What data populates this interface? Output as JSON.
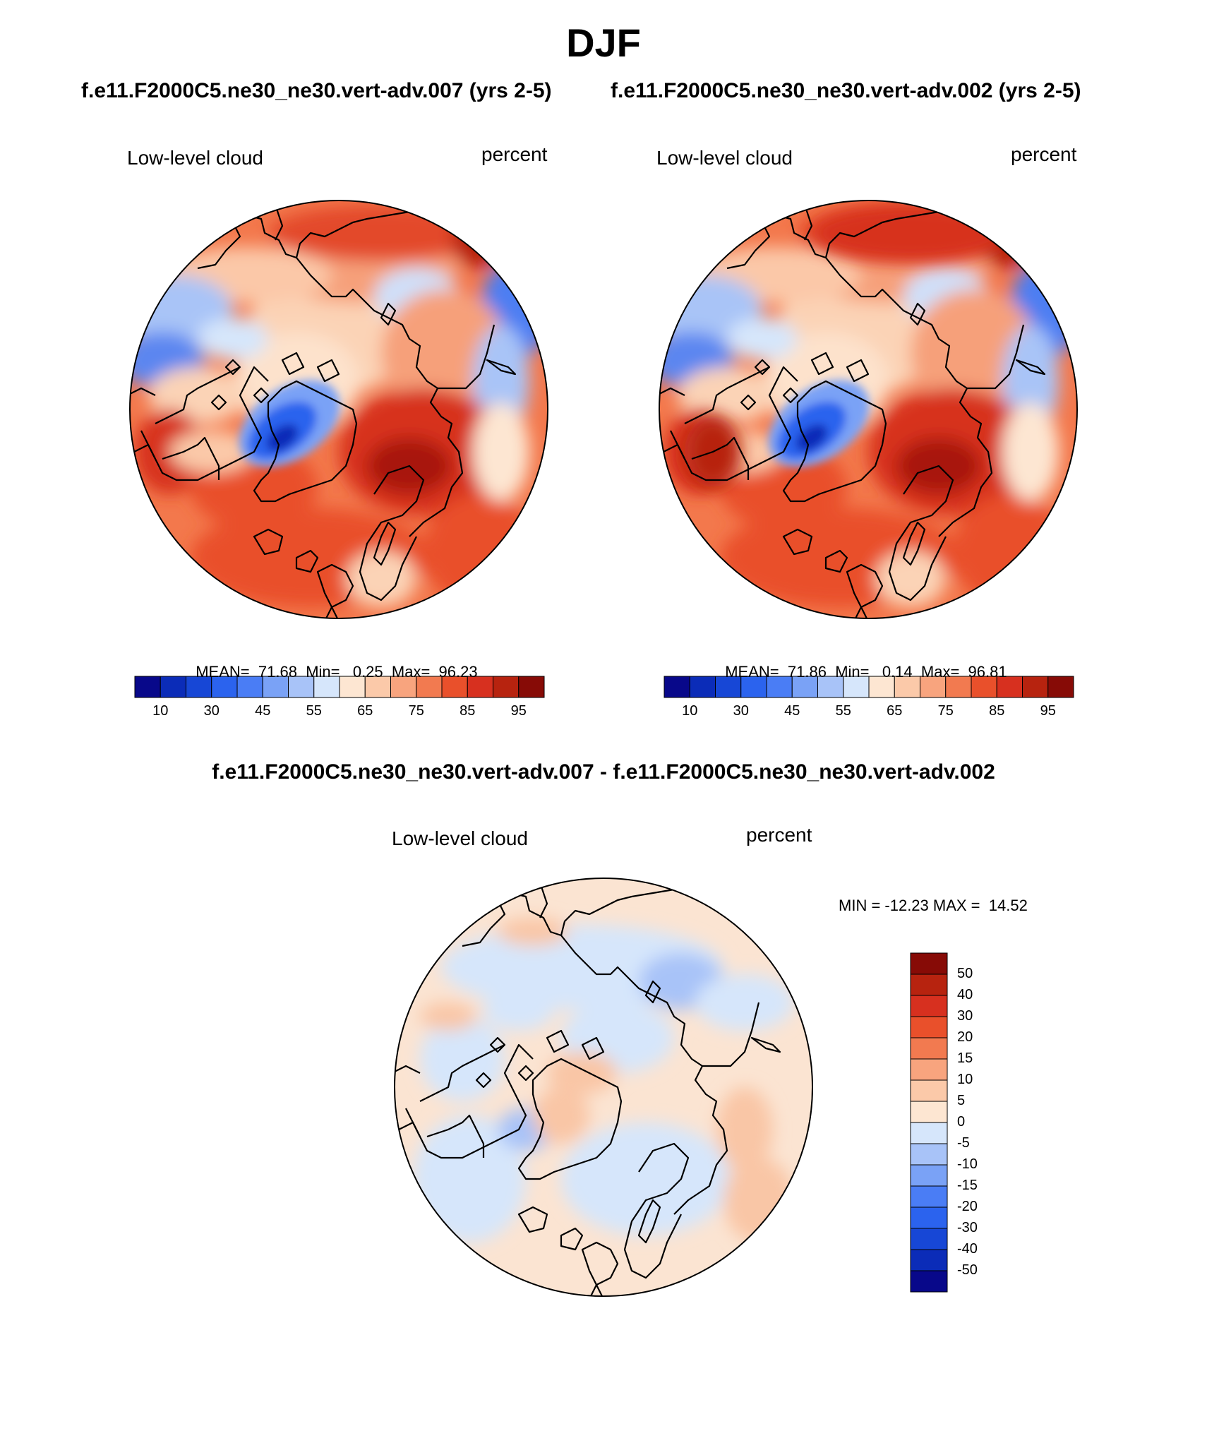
{
  "figure": {
    "season": "DJF",
    "case_a_title": "f.e11.F2000C5.ne30_ne30.vert-adv.007 (yrs 2-5)",
    "case_b_title": "f.e11.F2000C5.ne30_ne30.vert-adv.002 (yrs 2-5)",
    "diff_title": "f.e11.F2000C5.ne30_ne30.vert-adv.007 - f.e11.F2000C5.ne30_ne30.vert-adv.002"
  },
  "panels": [
    {
      "id": "case-a",
      "variable": "Low-level cloud",
      "units": "percent",
      "mean_label": "MEAN=",
      "mean": "71.68",
      "min_label": "Min=",
      "min": "0.25",
      "max_label": "Max=",
      "max": "96.23"
    },
    {
      "id": "case-b",
      "variable": "Low-level cloud",
      "units": "percent",
      "mean_label": "MEAN=",
      "mean": "71.86",
      "min_label": "Min=",
      "min": "0.14",
      "max_label": "Max=",
      "max": "96.81"
    },
    {
      "id": "difference",
      "variable": "Low-level cloud",
      "units": "percent",
      "minmax_text": "MIN = -12.23 MAX =  14.52"
    }
  ],
  "colorbars": {
    "absolute": {
      "colors": [
        "#08088a",
        "#0b2cb8",
        "#1747d6",
        "#2b63ee",
        "#4a7df5",
        "#7aa2f6",
        "#a8c3f8",
        "#d6e6fb",
        "#fde6d2",
        "#fbc9a9",
        "#f8a47e",
        "#f27a50",
        "#e9502b",
        "#d7301f",
        "#b7230f",
        "#870b06"
      ],
      "tick_labels": [
        "10",
        "30",
        "45",
        "55",
        "65",
        "75",
        "85",
        "95"
      ]
    },
    "difference": {
      "colors": [
        "#870b06",
        "#b7230f",
        "#d7301f",
        "#e9502b",
        "#f27a50",
        "#f8a47e",
        "#fbc9a9",
        "#fde6d2",
        "#d6e6fb",
        "#a8c3f8",
        "#7aa2f6",
        "#4a7df5",
        "#2b63ee",
        "#1747d6",
        "#0b2cb8",
        "#08088a"
      ],
      "tick_labels": [
        "50",
        "40",
        "30",
        "20",
        "15",
        "10",
        "5",
        "0",
        "-5",
        "-10",
        "-15",
        "-20",
        "-30",
        "-40",
        "-50"
      ]
    }
  }
}
